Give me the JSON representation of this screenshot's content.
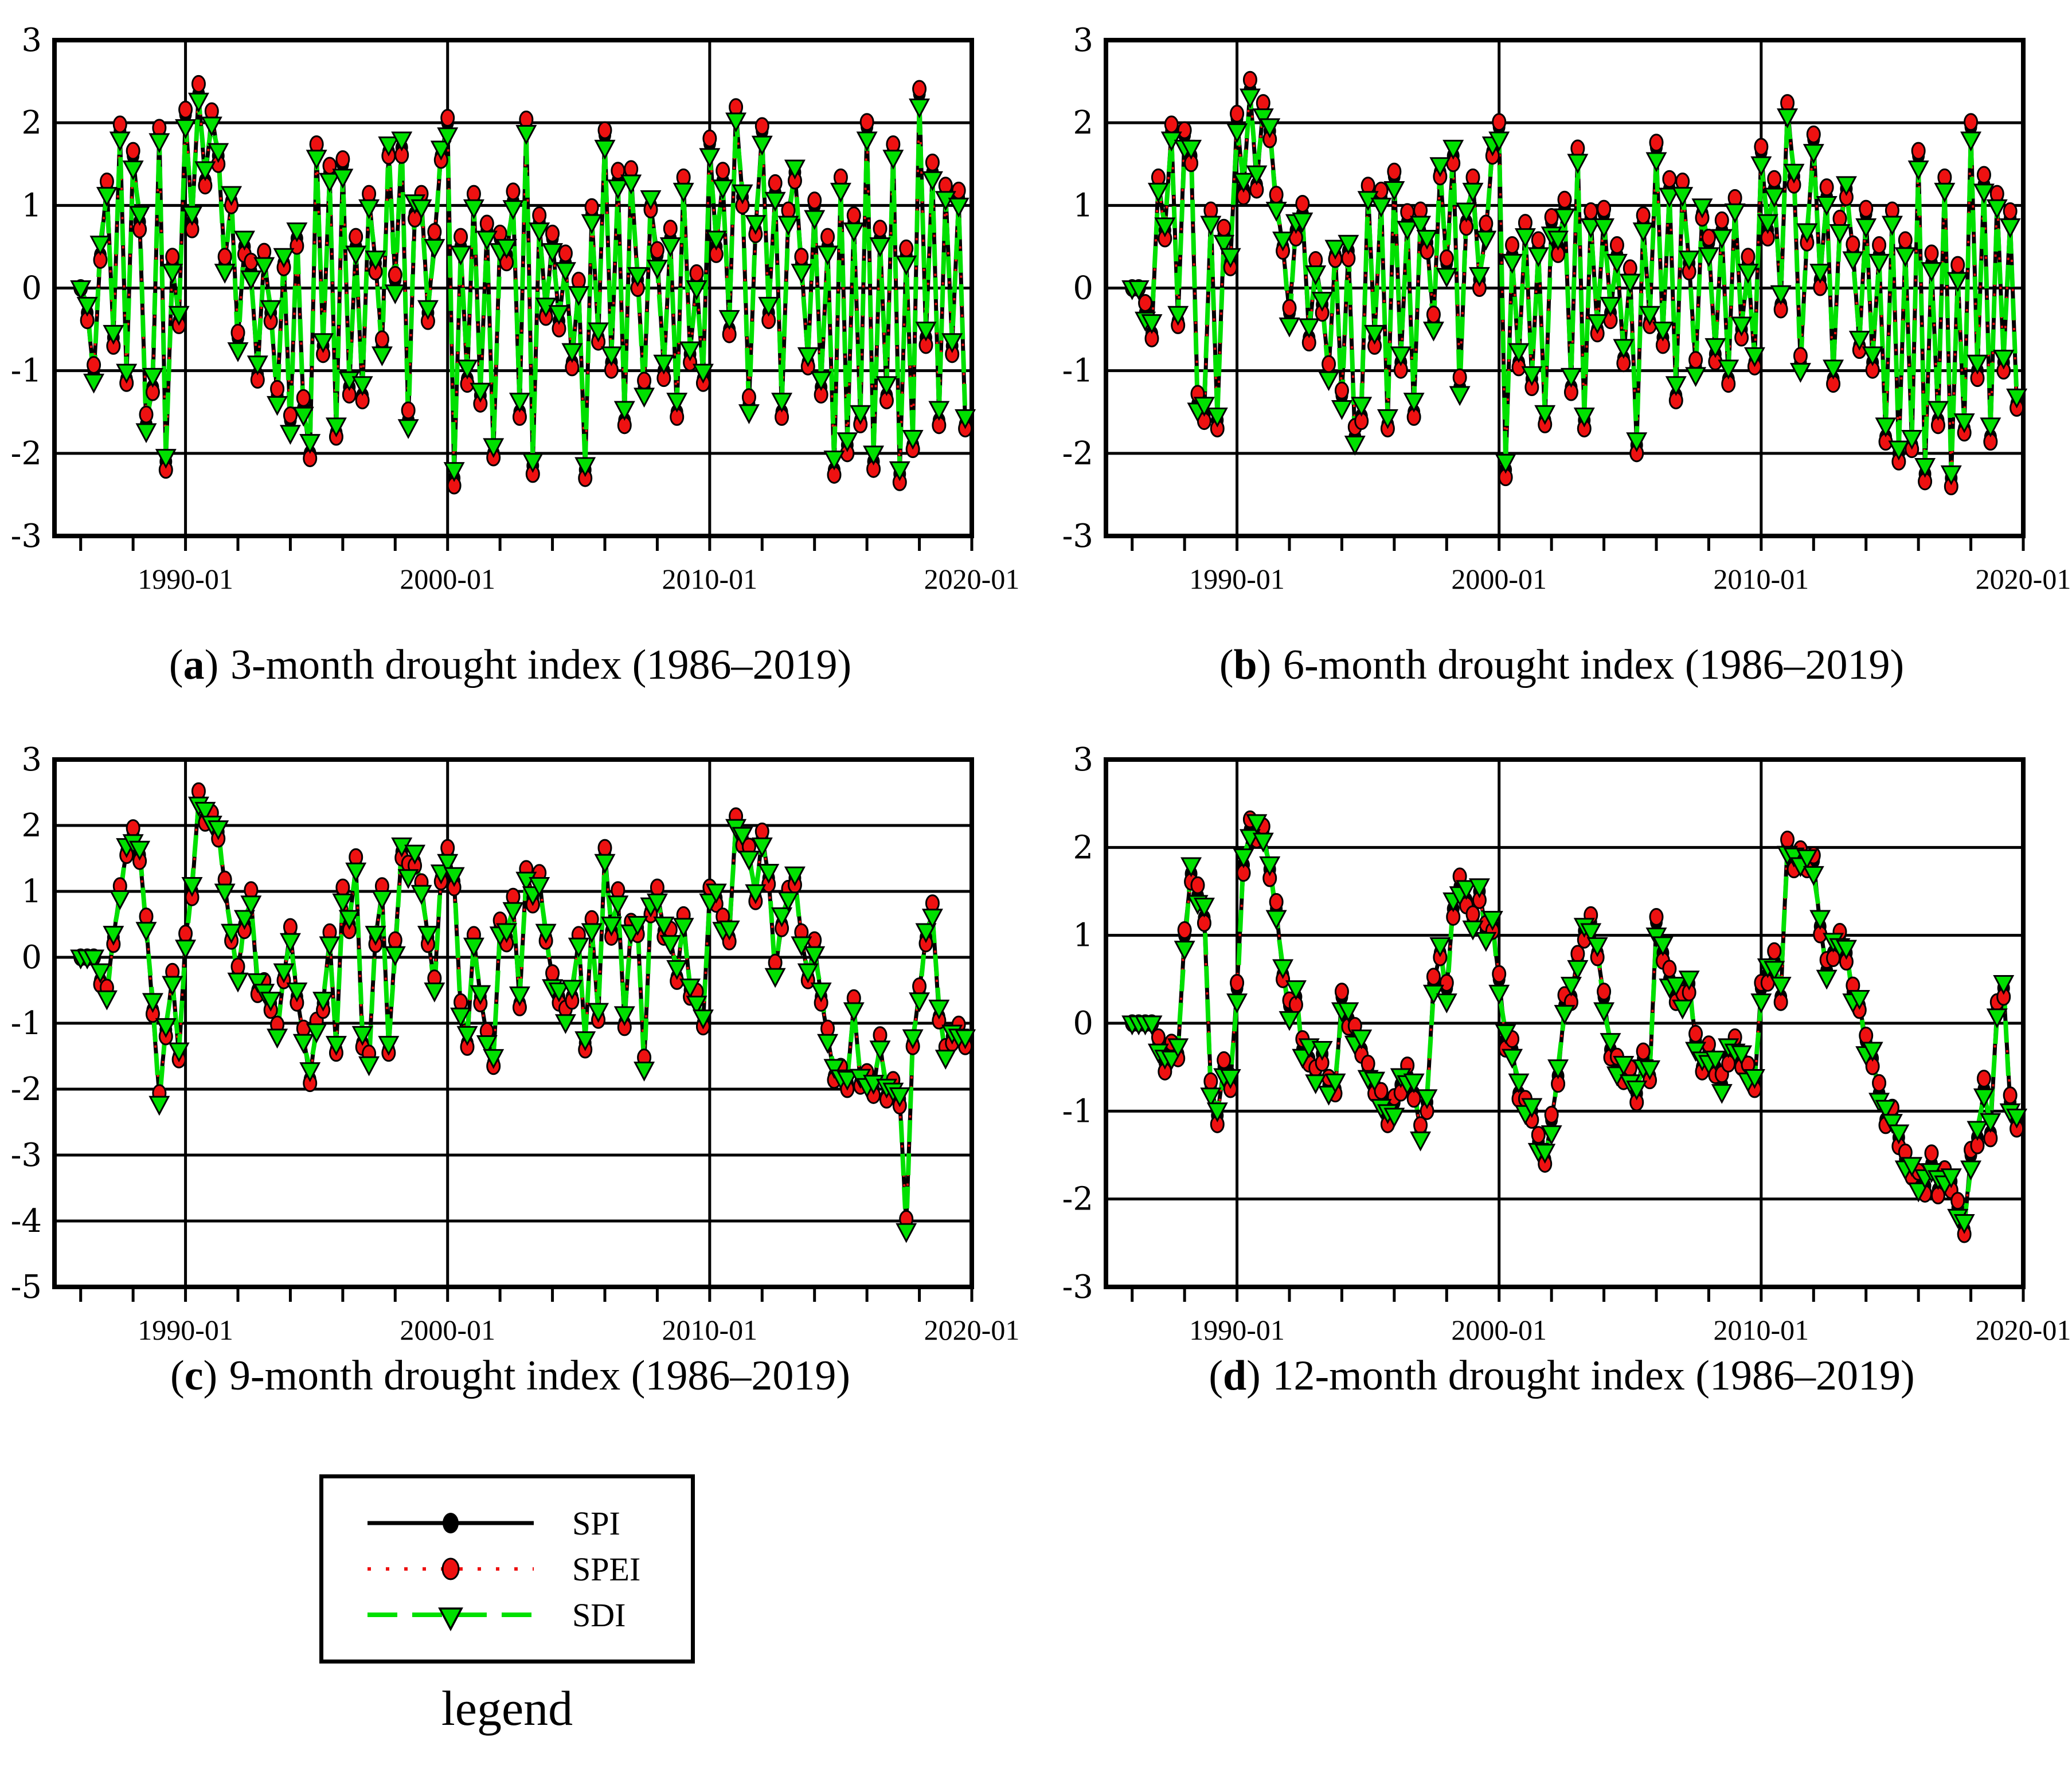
{
  "chart_data": {
    "type": "line",
    "description": "Four panels of monthly drought index time series (SPI, SPEI, SDI) plotted 1986-2019; series nearly overlap. Values here are quarterly samples read from the figure.",
    "x_axis": {
      "start_year": 1985,
      "end_year": 2020,
      "gridline_years": [
        1990,
        2000,
        2010
      ],
      "label_years": [
        1990,
        2000,
        2010,
        2020
      ],
      "minor_tick_every_years": 2
    },
    "series": [
      {
        "name": "SPI",
        "color": "#000000",
        "line": "solid",
        "marker": "ellipse"
      },
      {
        "name": "SPEI",
        "color": "#ee1111",
        "line": "dotted",
        "marker": "ellipse"
      },
      {
        "name": "SDI",
        "color": "#00e000",
        "line": "dashed",
        "marker": "triangle-down"
      }
    ],
    "series_offsets": {
      "spei": [
        0.06,
        -0.09,
        0.12,
        -0.06,
        0.04,
        -0.1,
        0.08,
        -0.05
      ],
      "sdi": [
        -0.15,
        0.1,
        -0.08,
        0.14,
        -0.12,
        0.06,
        -0.1,
        0.09
      ]
    },
    "panels": [
      {
        "key": "a",
        "caption_letter": "a",
        "caption_text": "3-month drought index (1986–2019)",
        "ylim": [
          -3,
          3
        ],
        "yticks": [
          "3",
          "2",
          "1",
          "0",
          "-1",
          "-2",
          "-3"
        ],
        "x_tick_labels": [
          "1990-01",
          "2000-01",
          "2010-01",
          "2020-01"
        ],
        "x_start_year": 1986,
        "x_step_months": 3,
        "spi_values": [
          0,
          -0.3,
          -1.05,
          0.4,
          1.25,
          -0.6,
          1.9,
          -1.1,
          1.6,
          0.8,
          -1.65,
          -1.2,
          1.9,
          -2.1,
          0.3,
          -0.4,
          2.1,
          0.8,
          2.35,
          1.3,
          2.1,
          1.6,
          0.3,
          1.05,
          -0.6,
          0.5,
          0.2,
          -1.05,
          0.4,
          -0.3,
          -1.3,
          0.3,
          -1.6,
          0.6,
          -1.45,
          -2.0,
          1.7,
          -0.7,
          1.4,
          -1.75,
          1.5,
          -1.2,
          0.5,
          -1.3,
          1.1,
          0.3,
          -0.7,
          1.65,
          0.1,
          1.7,
          -1.6,
          0.9,
          1.1,
          -0.3,
          0.6,
          1.6,
          2.0,
          -2.3,
          0.5,
          -1.1,
          1.1,
          -1.3,
          0.7,
          -2.0,
          0.6,
          0.4,
          1.05,
          -1.5,
          2.0,
          -2.15,
          0.8,
          -0.3,
          0.6,
          -0.4,
          0.3,
          -0.9,
          0.05,
          -2.2,
          0.9,
          -0.6,
          1.85,
          -0.9,
          1.3,
          -1.6,
          1.4,
          0.1,
          -1.2,
          1.0,
          0.4,
          -1.0,
          0.6,
          -1.5,
          1.3,
          -0.8,
          0.1,
          -1.1,
          1.75,
          0.5,
          1.3,
          -0.5,
          2.15,
          1.1,
          -1.4,
          0.7,
          1.9,
          -0.3,
          1.15,
          -1.5,
          0.9,
          1.4,
          0.3,
          -0.9,
          1.0,
          -1.2,
          0.5,
          -2.2,
          1.3,
          -1.9,
          0.8,
          -1.6,
          1.95,
          -2.1,
          0.6,
          -1.3,
          1.7,
          -2.25,
          0.4,
          -1.9,
          2.35,
          -0.6,
          1.4,
          -1.6,
          1.2,
          -0.7,
          1.1,
          -1.65
        ]
      },
      {
        "key": "b",
        "caption_letter": "b",
        "caption_text": "6-month drought index (1986–2019)",
        "ylim": [
          -3,
          3
        ],
        "yticks": [
          "3",
          "2",
          "1",
          "0",
          "-1",
          "-2",
          "-3"
        ],
        "x_tick_labels": [
          "1990-01",
          "2000-01",
          "2010-01",
          "2020-01"
        ],
        "x_start_year": 1986,
        "x_step_months": 3,
        "spi_values": [
          0,
          0,
          -0.3,
          -0.55,
          1.3,
          0.7,
          1.9,
          -0.4,
          1.85,
          1.6,
          -1.4,
          -1.55,
          0.9,
          -1.6,
          0.65,
          0.3,
          2.05,
          1.2,
          2.4,
          1.25,
          2.2,
          1.9,
          1.05,
          0.5,
          -0.3,
          0.7,
          0.9,
          -0.6,
          0.3,
          -0.2,
          -1.0,
          0.4,
          -1.3,
          0.45,
          -1.8,
          -1.55,
          1.2,
          -0.6,
          1.1,
          -1.65,
          1.35,
          -0.9,
          0.8,
          -1.5,
          0.9,
          0.55,
          -0.4,
          1.4,
          0.3,
          1.6,
          -1.2,
          0.8,
          1.3,
          0.1,
          0.7,
          1.65,
          1.95,
          -2.2,
          0.4,
          -0.9,
          0.75,
          -1.1,
          0.5,
          -1.6,
          0.8,
          0.5,
          0.95,
          -1.2,
          1.65,
          -1.6,
          0.85,
          -0.5,
          0.9,
          -0.3,
          0.4,
          -0.85,
          0.2,
          -1.9,
          0.8,
          -0.4,
          1.7,
          -0.6,
          1.2,
          -1.3,
          1.25,
          0.3,
          -0.95,
          0.9,
          0.55,
          -0.8,
          0.7,
          -1.1,
          1.05,
          -0.5,
          0.3,
          -0.9,
          1.65,
          0.7,
          1.2,
          -0.2,
          2.2,
          1.35,
          -0.9,
          0.6,
          1.8,
          0.1,
          1.1,
          -1.1,
          0.8,
          1.2,
          0.45,
          -0.7,
          0.9,
          -0.9,
          0.4,
          -1.8,
          0.9,
          -2.0,
          0.5,
          -1.9,
          1.6,
          -2.25,
          0.3,
          -1.6,
          1.3,
          -2.3,
          0.2,
          -1.7,
          1.95,
          -1.0,
          1.25,
          -1.8,
          1.1,
          -0.9,
          0.85,
          -1.4
        ]
      },
      {
        "key": "c",
        "caption_letter": "c",
        "caption_text": "9-month drought index (1986–2019)",
        "ylim": [
          -5,
          3
        ],
        "yticks": [
          "3",
          "2",
          "1",
          "0",
          "-1",
          "-2",
          "-3",
          "-4",
          "-5"
        ],
        "x_tick_labels": [
          "1990-01",
          "2000-01",
          "2010-01",
          "2020-01"
        ],
        "x_start_year": 1986,
        "x_step_months": 3,
        "spi_values": [
          0,
          0,
          0,
          -0.35,
          -0.5,
          0.3,
          1.0,
          1.6,
          1.9,
          1.55,
          0.5,
          -0.8,
          -2.1,
          -1.1,
          -0.3,
          -1.5,
          0.3,
          1.0,
          2.4,
          2.1,
          2.15,
          1.9,
          1.1,
          0.3,
          -0.2,
          0.5,
          0.9,
          -0.5,
          -0.4,
          -0.7,
          -1.1,
          -0.3,
          0.4,
          -0.6,
          -1.2,
          -1.85,
          -1.0,
          -0.7,
          0.3,
          -1.4,
          1.0,
          0.5,
          1.4,
          -1.3,
          -1.5,
          0.3,
          1.0,
          -1.4,
          0.2,
          1.6,
          1.3,
          1.45,
          1.1,
          0.3,
          -0.4,
          1.2,
          1.6,
          1.15,
          -0.8,
          -1.3,
          0.3,
          -0.6,
          -1.2,
          -1.6,
          0.5,
          0.3,
          0.8,
          -0.7,
          1.3,
          0.9,
          1.2,
          0.3,
          -0.3,
          -0.6,
          -0.9,
          -0.6,
          0.3,
          -1.3,
          0.5,
          -0.9,
          1.6,
          0.4,
          0.9,
          -1.0,
          0.5,
          0.45,
          -1.6,
          0.7,
          1.0,
          0.4,
          0.3,
          -0.3,
          0.6,
          -0.5,
          -0.6,
          -1.0,
          1.0,
          0.9,
          0.5,
          0.3,
          2.1,
          1.8,
          1.6,
          0.9,
          1.85,
          1.2,
          -0.2,
          0.5,
          1.0,
          1.2,
          0.3,
          -0.3,
          0.2,
          -0.6,
          -1.2,
          -1.8,
          -1.7,
          -1.9,
          -0.7,
          -1.9,
          -1.8,
          -2.0,
          -1.3,
          -2.1,
          -1.9,
          -2.15,
          -4.05,
          -1.3,
          -0.5,
          0.3,
          0.7,
          -0.9,
          -1.4,
          -1.2,
          -1.1,
          -1.3
        ]
      },
      {
        "key": "d",
        "caption_letter": "d",
        "caption_text": "12-month drought index (1986–2019)",
        "ylim": [
          -3,
          3
        ],
        "yticks": [
          "3",
          "2",
          "1",
          "0",
          "-1",
          "-2",
          "-3"
        ],
        "x_tick_labels": [
          "1990-01",
          "2000-01",
          "2010-01",
          "2020-01"
        ],
        "x_start_year": 1986,
        "x_step_months": 3,
        "spi_values": [
          0,
          0,
          0,
          0,
          -0.2,
          -0.45,
          -0.3,
          -0.35,
          1.0,
          1.7,
          1.45,
          1.2,
          -0.7,
          -1.05,
          -0.5,
          -0.7,
          0.4,
          1.8,
          2.2,
          2.15,
          2.2,
          1.75,
          1.3,
          0.55,
          0.2,
          0.3,
          -0.3,
          -0.4,
          -0.55,
          -0.35,
          -0.7,
          -0.75,
          0.3,
          0.05,
          -0.15,
          -0.3,
          -0.5,
          -0.7,
          -0.85,
          -1.1,
          -0.9,
          -0.7,
          -0.6,
          -0.8,
          -1.2,
          -0.9,
          0.45,
          0.8,
          0.4,
          1.3,
          1.55,
          1.4,
          1.2,
          1.5,
          1.05,
          1.1,
          0.5,
          -0.2,
          -0.3,
          -0.8,
          -0.9,
          -1.0,
          -1.35,
          -1.55,
          -1.1,
          -0.6,
          0.2,
          0.3,
          0.75,
          1.05,
          1.15,
          0.8,
          0.3,
          -0.3,
          -0.5,
          -0.6,
          -0.55,
          -0.8,
          -0.4,
          -0.6,
          1.15,
          0.8,
          0.5,
          0.3,
          0.3,
          0.45,
          -0.2,
          -0.5,
          -0.3,
          -0.5,
          -0.7,
          -0.4,
          -0.2,
          -0.4,
          -0.55,
          -0.7,
          0.4,
          0.55,
          0.7,
          0.3,
          2.05,
          1.85,
          1.9,
          1.8,
          1.85,
          1.1,
          0.6,
          0.8,
          1.0,
          0.8,
          0.35,
          0.2,
          -0.2,
          -0.4,
          -0.8,
          -1.1,
          -1.0,
          -1.3,
          -1.55,
          -1.7,
          -1.75,
          -1.85,
          -1.6,
          -1.9,
          -1.7,
          -1.8,
          -2.1,
          -2.35,
          -1.5,
          -1.3,
          -0.75,
          -1.25,
          0.2,
          0.4,
          -0.9,
          -1.15
        ]
      }
    ]
  },
  "caption_format": {
    "open": "(",
    "close": ")"
  },
  "legend": {
    "title": "legend",
    "items": [
      {
        "label": "SPI"
      },
      {
        "label": "SPEI"
      },
      {
        "label": "SDI"
      }
    ]
  }
}
